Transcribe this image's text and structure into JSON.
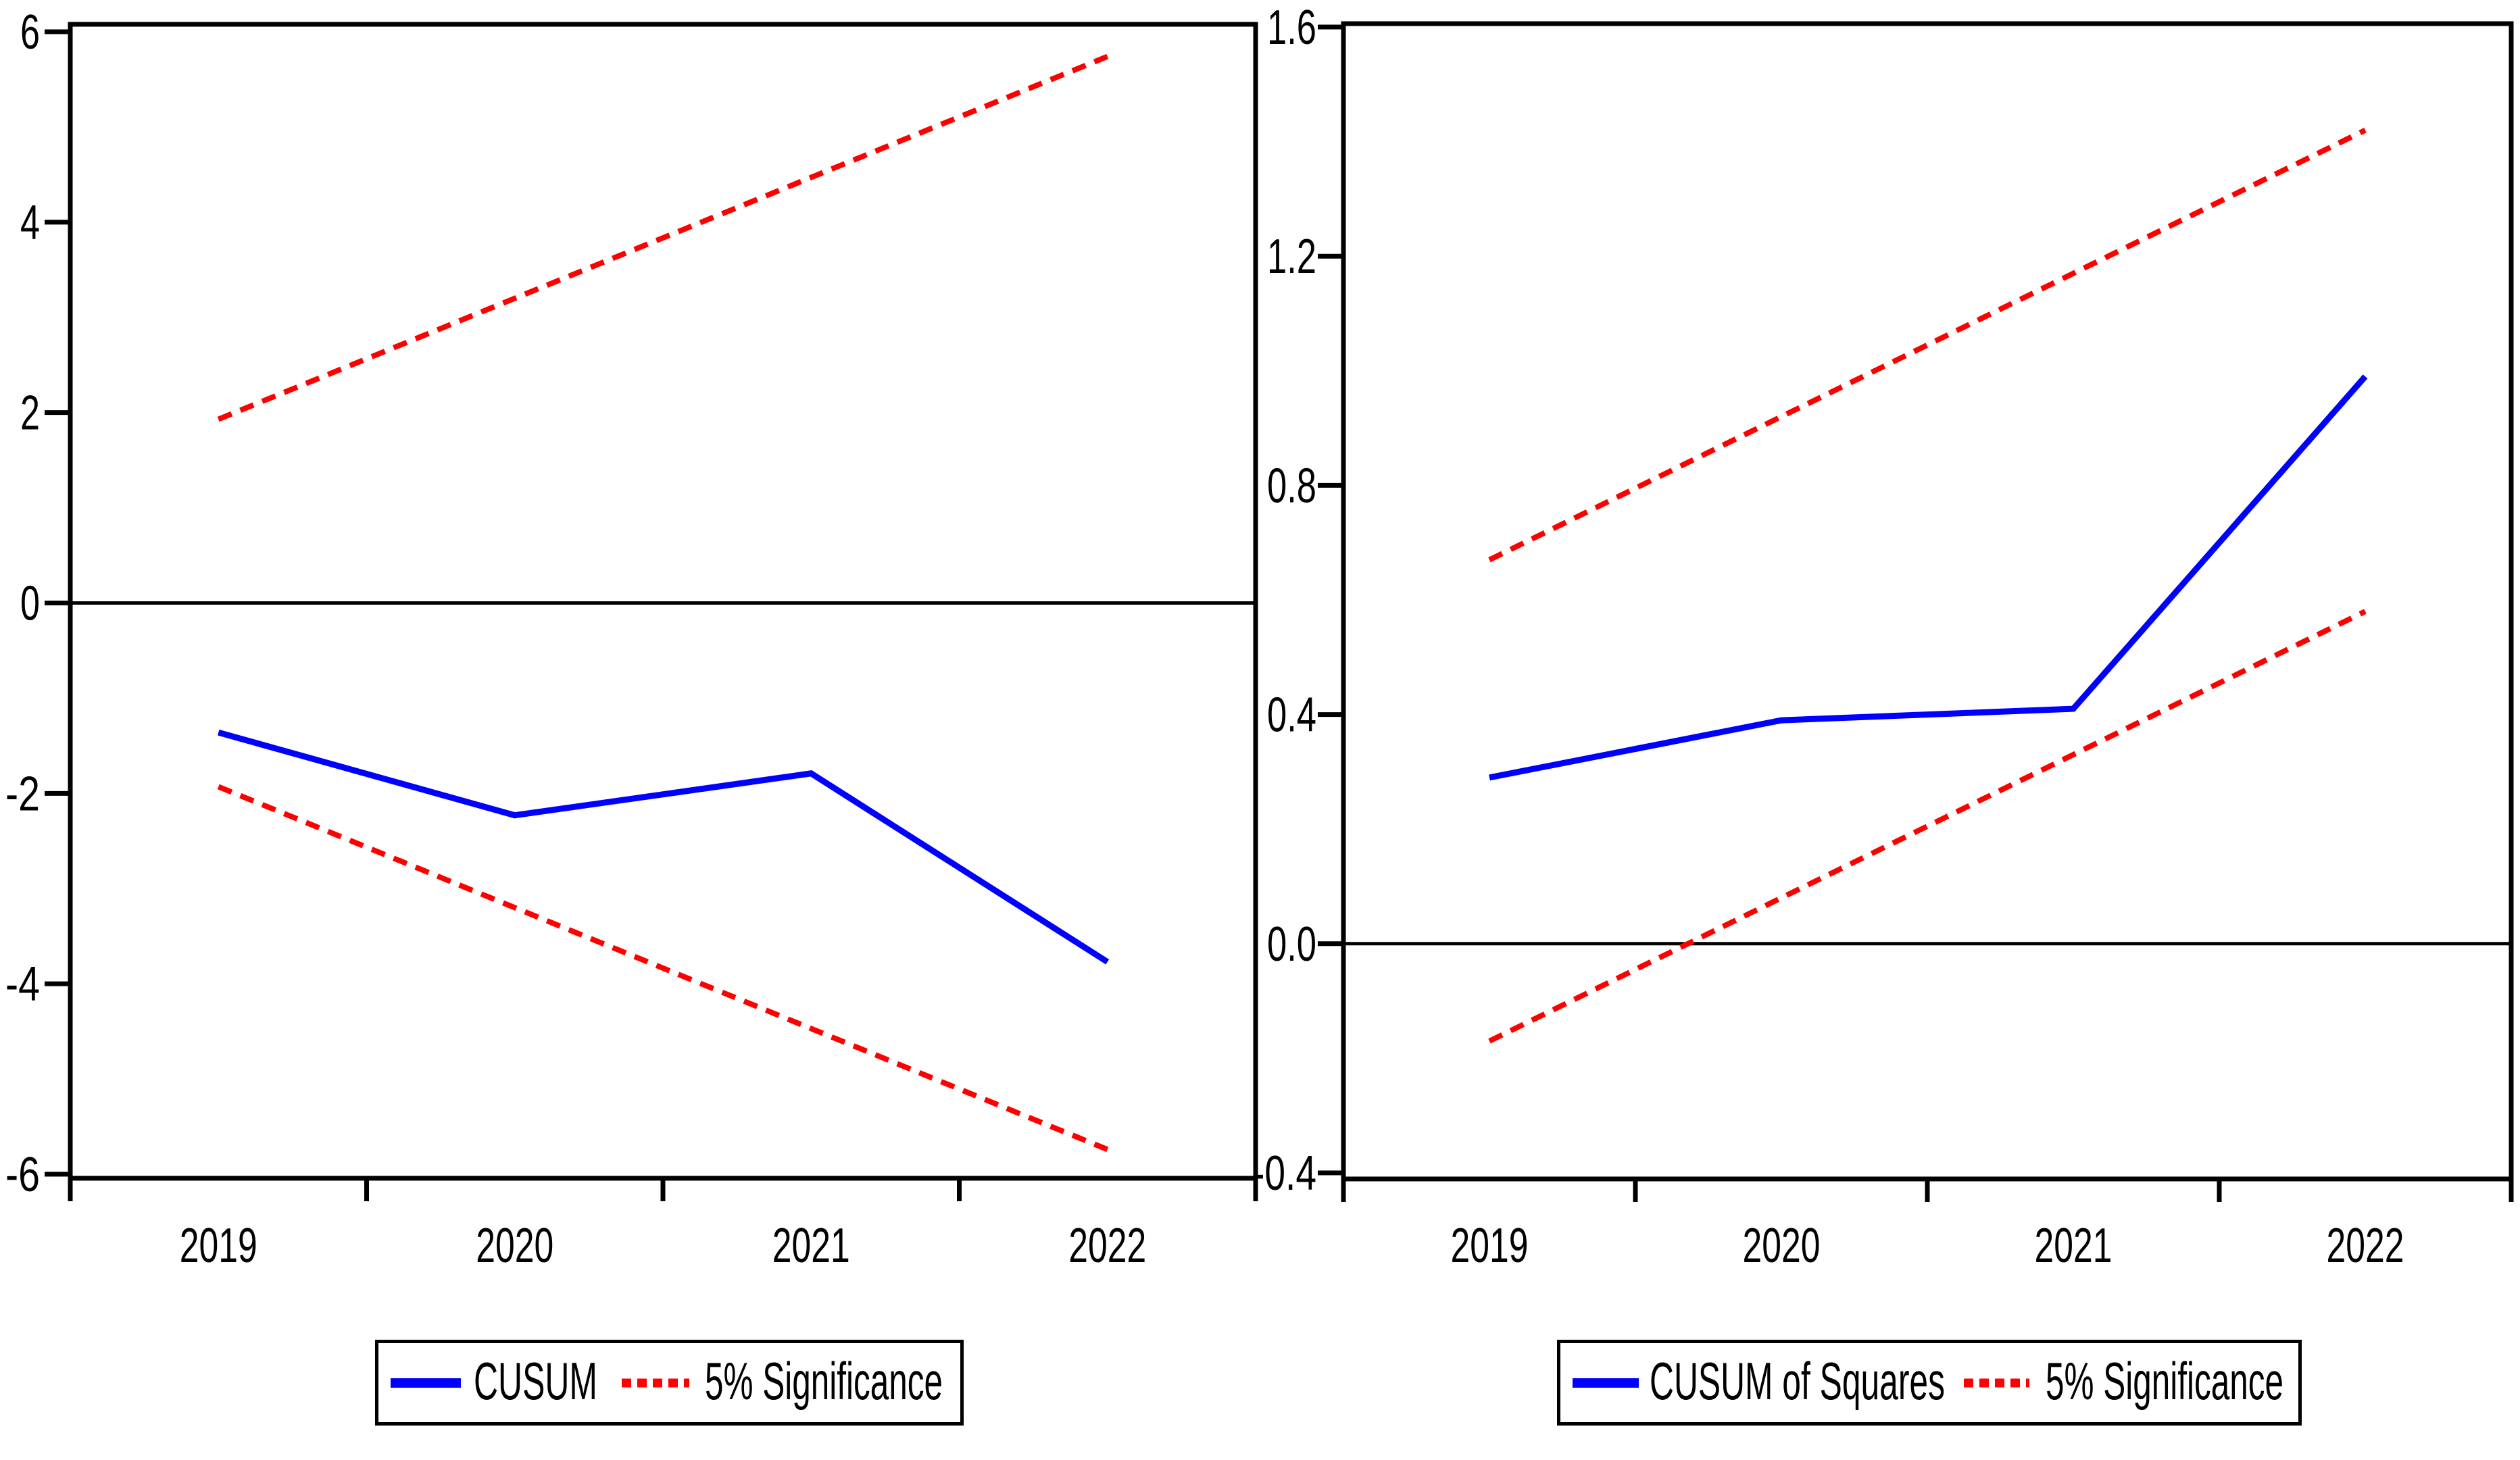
{
  "page": {
    "background": "#ffffff",
    "text_color": "#000000",
    "accent_blue": "#0000ff",
    "accent_red": "#ff0000"
  },
  "chart_data": [
    {
      "id": "cusum",
      "type": "line",
      "title": "",
      "xlabel": "",
      "ylabel": "",
      "x_categories": [
        "2019",
        "2020",
        "2021",
        "2022"
      ],
      "ylim": [
        -6,
        6
      ],
      "grid": false,
      "zero_line": true,
      "legend_position": "bottom",
      "y_ticks": [
        {
          "value": 6,
          "label": "6"
        },
        {
          "value": 4,
          "label": "4"
        },
        {
          "value": 2,
          "label": "2"
        },
        {
          "value": 0,
          "label": "0"
        },
        {
          "value": -2,
          "label": "-2"
        },
        {
          "value": -4,
          "label": "-4"
        },
        {
          "value": -6,
          "label": "-6"
        }
      ],
      "series": [
        {
          "id": "significance-upper-line",
          "name": "5% Significance",
          "color": "#ff0000",
          "style": "dashed",
          "width": 8,
          "values": [
            1.93,
            3.2,
            4.47,
            5.74
          ]
        },
        {
          "id": "significance-lower-line",
          "name": "5% Significance",
          "color": "#ff0000",
          "style": "dashed",
          "width": 8,
          "values": [
            -1.93,
            -3.2,
            -4.47,
            -5.74
          ]
        },
        {
          "id": "cusum-line",
          "name": "CUSUM",
          "color": "#0000ff",
          "style": "solid",
          "width": 9,
          "values": [
            -1.36,
            -2.23,
            -1.79,
            -3.77
          ]
        }
      ],
      "legend": [
        {
          "label": "CUSUM",
          "color": "#0000ff",
          "style": "solid"
        },
        {
          "label": "5% Significance",
          "color": "#ff0000",
          "style": "dashed"
        }
      ]
    },
    {
      "id": "cusumsq",
      "type": "line",
      "title": "",
      "xlabel": "",
      "ylabel": "",
      "x_categories": [
        "2019",
        "2020",
        "2021",
        "2022"
      ],
      "ylim": [
        -0.4,
        1.6
      ],
      "grid": false,
      "zero_line": true,
      "legend_position": "bottom",
      "y_ticks": [
        {
          "value": 1.6,
          "label": "1.6"
        },
        {
          "value": 1.2,
          "label": "1.2"
        },
        {
          "value": 0.8,
          "label": "0.8"
        },
        {
          "value": 0.4,
          "label": "0.4"
        },
        {
          "value": 0.0,
          "label": "0.0"
        },
        {
          "value": -0.4,
          "label": "-0.4"
        }
      ],
      "series": [
        {
          "id": "significance-upper-line",
          "name": "5% Significance",
          "color": "#ff0000",
          "style": "dashed",
          "width": 8,
          "values": [
            0.67,
            0.92,
            1.17,
            1.42
          ]
        },
        {
          "id": "significance-lower-line",
          "name": "5% Significance",
          "color": "#ff0000",
          "style": "dashed",
          "width": 8,
          "values": [
            -0.17,
            0.08,
            0.33,
            0.58
          ]
        },
        {
          "id": "cusumsq-line",
          "name": "CUSUM of Squares",
          "color": "#0000ff",
          "style": "solid",
          "width": 9,
          "values": [
            0.29,
            0.39,
            0.41,
            0.99
          ]
        }
      ],
      "legend": [
        {
          "label": "CUSUM of Squares",
          "color": "#0000ff",
          "style": "solid"
        },
        {
          "label": "5% Significance",
          "color": "#ff0000",
          "style": "dashed"
        }
      ]
    }
  ]
}
